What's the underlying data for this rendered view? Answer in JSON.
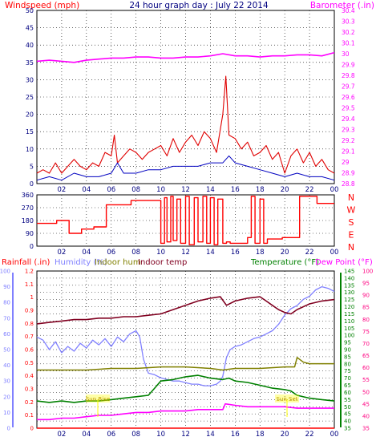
{
  "title": "24 hour graph day : July 22 2014",
  "colors": {
    "wind_speed": "#ff0000",
    "wind_gust": "#e00000",
    "wind_avg": "#0000c0",
    "barometer": "#ff00ff",
    "direction": "#ff0000",
    "rainfall": "#ff0000",
    "humidity": "#8080ff",
    "indoor_hum": "#808000",
    "indoor_temp": "#800020",
    "temperature": "#008000",
    "dew_point": "#ff00ff",
    "rain_axis": "#8080ff",
    "dew_axis": "#ff0080",
    "sun_markers": "#ffff00",
    "grid": "#000000",
    "text_dark": "#000080"
  },
  "chart_data": [
    {
      "type": "line",
      "title": "24 hour graph day : July 22 2014",
      "x_tick_labels": [
        "02",
        "04",
        "06",
        "08",
        "10",
        "12",
        "14",
        "16",
        "18",
        "20",
        "22",
        "00"
      ],
      "xlim": [
        0,
        24
      ],
      "left_axis": {
        "label": "Windspeed (mph)",
        "ticks": [
          "0",
          "5",
          "10",
          "15",
          "20",
          "25",
          "30",
          "35",
          "40",
          "45",
          "50"
        ],
        "ylim": [
          0,
          50
        ]
      },
      "right_axis": {
        "label": "Barometer (.in)",
        "ticks": [
          "28.8",
          "28.9",
          "29",
          "29.1",
          "29.2",
          "29.3",
          "29.4",
          "29.5",
          "29.6",
          "29.7",
          "29.8",
          "29.9",
          "30",
          "30.1",
          "30.2",
          "30.3",
          "30.4"
        ],
        "ylim": [
          28.8,
          30.4
        ]
      },
      "grid": true,
      "series": [
        {
          "name": "Windspeed (mph)",
          "key": "gust",
          "x": [
            0,
            0.5,
            1,
            1.5,
            2,
            2.5,
            3,
            3.5,
            4,
            4.5,
            5,
            5.5,
            6,
            6.25,
            6.5,
            7,
            7.5,
            8,
            8.5,
            9,
            9.5,
            10,
            10.5,
            11,
            11.5,
            12,
            12.5,
            13,
            13.5,
            14,
            14.5,
            15,
            15.25,
            15.5,
            16,
            16.5,
            17,
            17.5,
            18,
            18.5,
            19,
            19.5,
            20,
            20.5,
            21,
            21.5,
            22,
            22.5,
            23,
            23.5,
            24
          ],
          "values": [
            3,
            4,
            3,
            6,
            3,
            5,
            7,
            5,
            4,
            6,
            5,
            9,
            8,
            14,
            6,
            8,
            10,
            9,
            7,
            9,
            10,
            11,
            8,
            13,
            9,
            12,
            14,
            11,
            15,
            13,
            9,
            20,
            31,
            14,
            13,
            10,
            12,
            8,
            9,
            11,
            7,
            9,
            3,
            8,
            10,
            6,
            9,
            5,
            7,
            4,
            3
          ]
        },
        {
          "name": "Windspeed (mph)",
          "key": "average",
          "x": [
            0,
            1,
            2,
            3,
            4,
            5,
            6,
            6.5,
            7,
            8,
            9,
            10,
            11,
            12,
            13,
            14,
            15,
            15.5,
            16,
            17,
            18,
            19,
            20,
            21,
            22,
            23,
            24
          ],
          "values": [
            1,
            2,
            1,
            3,
            2,
            2,
            3,
            6,
            3,
            3,
            4,
            4,
            5,
            5,
            5,
            6,
            6,
            8,
            6,
            5,
            4,
            3,
            2,
            3,
            2,
            2,
            1
          ]
        },
        {
          "name": "Barometer (.in)",
          "x": [
            0,
            1,
            2,
            3,
            4,
            5,
            6,
            7,
            8,
            9,
            10,
            11,
            12,
            13,
            14,
            15,
            16,
            17,
            18,
            19,
            20,
            21,
            22,
            23,
            24
          ],
          "values": [
            29.93,
            29.94,
            29.93,
            29.92,
            29.94,
            29.95,
            29.96,
            29.96,
            29.97,
            29.97,
            29.96,
            29.96,
            29.97,
            29.97,
            29.98,
            30.0,
            29.98,
            29.98,
            29.97,
            29.98,
            29.98,
            29.99,
            29.99,
            29.98,
            30.01
          ]
        }
      ]
    },
    {
      "type": "line",
      "x_tick_labels": [
        "02",
        "04",
        "06",
        "08",
        "10",
        "12",
        "14",
        "16",
        "18",
        "20",
        "22",
        "00"
      ],
      "xlim": [
        0,
        24
      ],
      "left_axis": {
        "label": "",
        "ticks": [
          "0",
          "90",
          "180",
          "270",
          "360"
        ],
        "ylim": [
          0,
          360
        ]
      },
      "right_axis": {
        "label": "",
        "ticks": [
          "N",
          "W",
          "S",
          "E",
          "N"
        ]
      },
      "right_labels": [
        "N",
        "W",
        "S",
        "E",
        "N"
      ],
      "grid": true,
      "series": [
        {
          "name": "",
          "key": "direction",
          "x": [
            0,
            1.5,
            1.6,
            2.5,
            2.6,
            3.5,
            3.6,
            4.5,
            4.6,
            5.5,
            5.6,
            7.5,
            7.6,
            9.8,
            10.0,
            10.3,
            10.5,
            10.8,
            11.0,
            11.3,
            11.6,
            12.0,
            12.3,
            12.7,
            13.0,
            13.4,
            13.7,
            14.0,
            14.3,
            14.6,
            15.0,
            15.3,
            15.6,
            17.0,
            17.3,
            17.6,
            18.0,
            18.3,
            18.6,
            19.5,
            19.8,
            21.0,
            21.2,
            22.5,
            22.6,
            24
          ],
          "values": [
            160,
            160,
            180,
            180,
            90,
            90,
            120,
            120,
            135,
            135,
            290,
            290,
            320,
            320,
            20,
            340,
            30,
            350,
            40,
            330,
            20,
            350,
            10,
            340,
            30,
            350,
            20,
            340,
            10,
            330,
            20,
            30,
            20,
            60,
            350,
            20,
            330,
            20,
            50,
            50,
            60,
            60,
            350,
            350,
            300,
            300
          ]
        }
      ]
    },
    {
      "type": "line",
      "x_tick_labels": [
        "02",
        "04",
        "06",
        "08",
        "10",
        "12",
        "14",
        "16",
        "18",
        "20",
        "22",
        "00"
      ],
      "xlim": [
        0,
        24
      ],
      "rain_axis": {
        "label": "Rainfall (.in)",
        "ticks": [
          "0",
          "0.1",
          "0.2",
          "0.3",
          "0.4",
          "0.5",
          "0.6",
          "0.7",
          "0.8",
          "0.9",
          "1",
          "1.1",
          "1.2"
        ],
        "ylim": [
          0,
          1.2
        ]
      },
      "humidity_axis": {
        "label": "Humidity (%)",
        "ticks": [
          "0",
          "10",
          "20",
          "30",
          "40",
          "50",
          "60",
          "70",
          "80",
          "90",
          "100"
        ],
        "ylim": [
          0,
          100
        ]
      },
      "temperature_axis": {
        "label": "Temperature (°F)",
        "ticks": [
          "35",
          "40",
          "45",
          "50",
          "55",
          "60",
          "65",
          "70",
          "75",
          "80",
          "85",
          "90",
          "95",
          "100",
          "105",
          "110",
          "115",
          "120",
          "125",
          "130",
          "135",
          "140",
          "145"
        ],
        "ylim": [
          35,
          145
        ]
      },
      "dew_axis": {
        "label": "Dew Point (°F)",
        "ticks": [
          "35",
          "40",
          "45",
          "50",
          "55",
          "60",
          "65",
          "70",
          "75",
          "80",
          "85",
          "90",
          "95",
          "100"
        ],
        "ylim": [
          35,
          100
        ]
      },
      "legend_labels": [
        "Rainfall (.in)",
        "Humidity (%)",
        "Indoor hum",
        "Indoor temp",
        "Temperature (°F)",
        "Dew Point (°F)"
      ],
      "annotations": [
        "Sun Rise",
        "Sun Set"
      ],
      "grid": true,
      "series": [
        {
          "name": "Humidity (%)",
          "key": "humidity",
          "x": [
            0,
            0.5,
            1,
            1.5,
            2,
            2.5,
            3,
            3.5,
            4,
            4.5,
            5,
            5.5,
            6,
            6.5,
            7,
            7.5,
            8,
            8.3,
            8.6,
            9,
            9.5,
            10,
            10.5,
            11,
            11.5,
            12,
            12.5,
            13,
            13.5,
            14,
            14.5,
            14.8,
            15.0,
            15.3,
            15.6,
            16,
            16.5,
            17,
            17.5,
            18,
            18.5,
            19,
            19.5,
            20,
            20.5,
            21,
            21.5,
            22,
            22.5,
            23,
            23.5,
            24
          ],
          "values": [
            58,
            56,
            50,
            55,
            48,
            52,
            49,
            54,
            51,
            56,
            53,
            57,
            52,
            58,
            55,
            60,
            62,
            58,
            44,
            35,
            34,
            32,
            31,
            30,
            30,
            29,
            28,
            28,
            27,
            27,
            28,
            30,
            33,
            45,
            50,
            52,
            53,
            55,
            57,
            58,
            60,
            62,
            66,
            72,
            76,
            78,
            82,
            84,
            88,
            90,
            89,
            87
          ]
        },
        {
          "name": "Indoor hum",
          "key": "indoor_hum",
          "x": [
            0,
            4,
            6,
            8,
            10,
            12,
            14,
            15,
            16,
            18,
            20,
            20.8,
            21,
            21.5,
            22,
            24
          ],
          "values": [
            37,
            37,
            38,
            38,
            39,
            39,
            38,
            37,
            38,
            38,
            39,
            39,
            45,
            42,
            41,
            41
          ]
        },
        {
          "name": "Indoor temp",
          "key": "indoor_temp",
          "x": [
            0,
            1,
            2,
            3,
            4,
            5,
            6,
            7,
            8,
            9,
            10,
            11,
            12,
            13,
            14,
            14.8,
            15.3,
            16,
            17,
            18,
            18.5,
            19,
            19.5,
            20,
            20.5,
            21,
            22,
            23,
            24
          ],
          "values": [
            108,
            109,
            110,
            111,
            111,
            112,
            112,
            113,
            113,
            114,
            115,
            118,
            121,
            124,
            126,
            127,
            121,
            124,
            126,
            127,
            124,
            121,
            118,
            116,
            115,
            118,
            122,
            124,
            125
          ]
        },
        {
          "name": "Temperature (°F)",
          "key": "temperature",
          "x": [
            0,
            1,
            2,
            3,
            4,
            5,
            6,
            7,
            8,
            9,
            9.5,
            10,
            11,
            12,
            13,
            14,
            15,
            15.5,
            16,
            17,
            18,
            19,
            20,
            20.5,
            21,
            22,
            23,
            24
          ],
          "values": [
            54,
            53,
            54,
            53,
            54,
            54,
            55,
            56,
            57,
            58,
            63,
            68,
            69,
            71,
            72,
            70,
            69,
            70,
            68,
            67,
            65,
            63,
            62,
            61,
            58,
            56,
            55,
            54
          ]
        },
        {
          "name": "Dew Point (°F)",
          "key": "dew_point",
          "x": [
            0,
            1,
            2,
            3,
            4,
            5,
            6,
            7,
            8,
            9,
            10,
            11,
            12,
            13,
            14,
            15,
            15.2,
            16,
            17,
            18,
            19,
            20,
            21,
            22,
            23,
            24
          ],
          "values": [
            41,
            41,
            42,
            42,
            43,
            44,
            44,
            45,
            46,
            46,
            47,
            47,
            47,
            48,
            48,
            48,
            52,
            51,
            50,
            50,
            50,
            50,
            49,
            49,
            49,
            49
          ]
        },
        {
          "name": "Rainfall (.in)",
          "key": "rainfall",
          "x": [
            0,
            24
          ],
          "values": [
            0,
            0
          ]
        }
      ]
    }
  ]
}
